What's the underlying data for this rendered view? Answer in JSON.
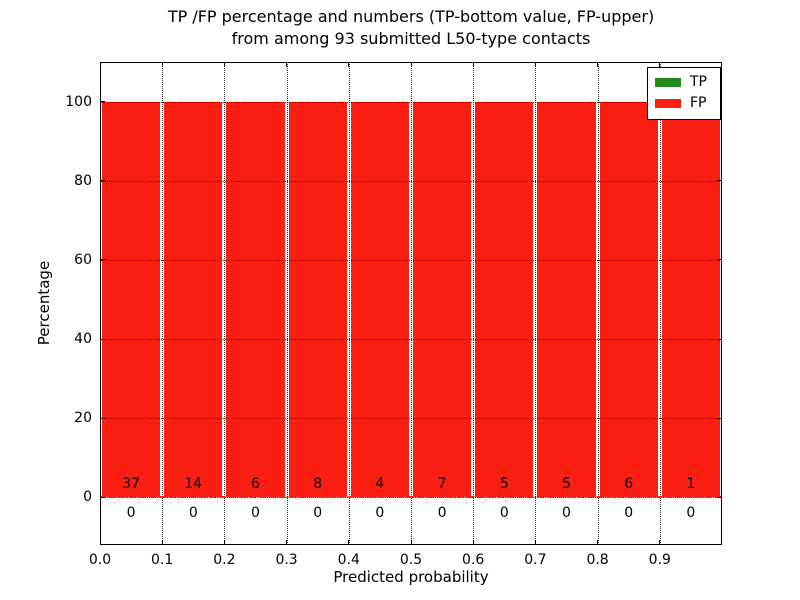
{
  "chart_data": {
    "type": "bar",
    "stacked": true,
    "title_lines": [
      "TP /FP percentage and numbers (TP-bottom value, FP-upper)",
      "from among 93 submitted L50-type contacts"
    ],
    "xlabel": "Predicted probability",
    "ylabel": "Percentage",
    "xlim": [
      0,
      1
    ],
    "ylim": [
      -12,
      110
    ],
    "bin_width": 0.1,
    "x_tick_labels": [
      "0.0",
      "0.1",
      "0.2",
      "0.3",
      "0.4",
      "0.5",
      "0.6",
      "0.7",
      "0.8",
      "0.9"
    ],
    "x_tick_values": [
      0,
      0.1,
      0.2,
      0.3,
      0.4,
      0.5,
      0.6,
      0.7,
      0.8,
      0.9
    ],
    "y_tick_labels": [
      "0",
      "20",
      "40",
      "60",
      "80",
      "100"
    ],
    "y_tick_values": [
      0,
      20,
      40,
      60,
      80,
      100
    ],
    "grid": {
      "on": true,
      "style": "dotted",
      "color": "#000000"
    },
    "zero_line": {
      "y": 0,
      "style": "dashed",
      "color": "#fb1e12"
    },
    "total_contacts": 93,
    "series": [
      {
        "name": "TP",
        "color": "#1f8b1f",
        "percentages": [
          0,
          0,
          0,
          0,
          0,
          0,
          0,
          0,
          0,
          0
        ],
        "counts": [
          0,
          0,
          0,
          0,
          0,
          0,
          0,
          0,
          0,
          0
        ],
        "count_label_y": -4
      },
      {
        "name": "FP",
        "color": "#fb1e12",
        "percentages": [
          100,
          100,
          100,
          100,
          100,
          100,
          100,
          100,
          100,
          100
        ],
        "counts": [
          37,
          14,
          6,
          8,
          4,
          7,
          5,
          5,
          6,
          1
        ],
        "count_label_y": 3.5
      }
    ],
    "legend": {
      "position": "upper-right",
      "entries": [
        {
          "label": "TP",
          "color": "#1f8b1f"
        },
        {
          "label": "FP",
          "color": "#fb1e12"
        }
      ]
    }
  }
}
